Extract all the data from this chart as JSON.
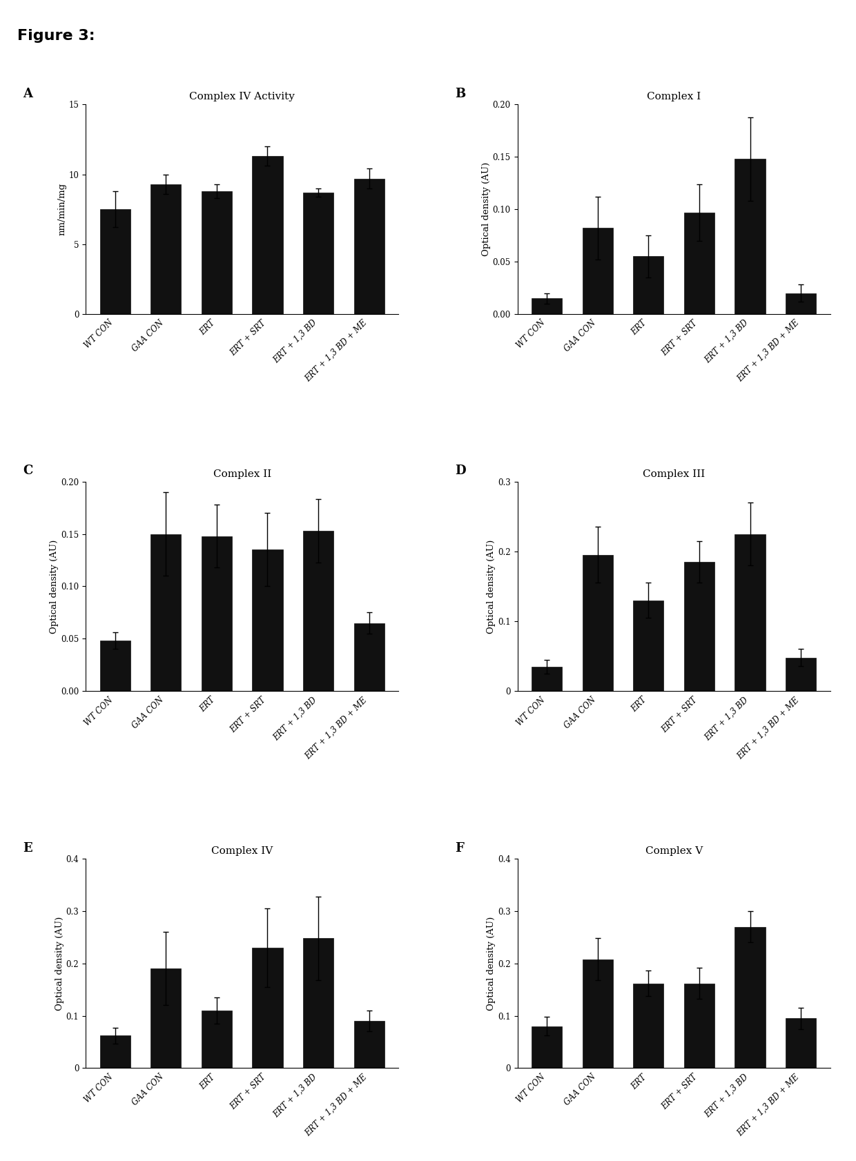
{
  "figure_title": "Figure 3:",
  "categories": [
    "WT CON",
    "GAA CON",
    "ERT",
    "ERT + SRT",
    "ERT + 1,3 BD",
    "ERT + 1,3 BD + ME"
  ],
  "panels": [
    {
      "label": "A",
      "title": "Complex IV Activity",
      "ylabel": "nm/min/mg",
      "ylim": [
        0,
        15
      ],
      "yticks": [
        0,
        5,
        10,
        15
      ],
      "yticklabels": [
        "0",
        "5",
        "10",
        "15"
      ],
      "values": [
        7.5,
        9.3,
        8.8,
        11.3,
        8.7,
        9.7
      ],
      "errors": [
        1.3,
        0.7,
        0.5,
        0.7,
        0.3,
        0.7
      ]
    },
    {
      "label": "B",
      "title": "Complex I",
      "ylabel": "Optical density (AU)",
      "ylim": [
        0,
        0.2
      ],
      "yticks": [
        0.0,
        0.05,
        0.1,
        0.15,
        0.2
      ],
      "yticklabels": [
        "0.00",
        "0.05",
        "0.10",
        "0.15",
        "0.20"
      ],
      "values": [
        0.015,
        0.082,
        0.055,
        0.097,
        0.148,
        0.02
      ],
      "errors": [
        0.005,
        0.03,
        0.02,
        0.027,
        0.04,
        0.008
      ]
    },
    {
      "label": "C",
      "title": "Complex II",
      "ylabel": "Optical density (AU)",
      "ylim": [
        0,
        0.2
      ],
      "yticks": [
        0.0,
        0.05,
        0.1,
        0.15,
        0.2
      ],
      "yticklabels": [
        "0.00",
        "0.05",
        "0.10",
        "0.15",
        "0.20"
      ],
      "values": [
        0.048,
        0.15,
        0.148,
        0.135,
        0.153,
        0.065
      ],
      "errors": [
        0.008,
        0.04,
        0.03,
        0.035,
        0.03,
        0.01
      ]
    },
    {
      "label": "D",
      "title": "Complex III",
      "ylabel": "Optical density (AU)",
      "ylim": [
        0,
        0.3
      ],
      "yticks": [
        0.0,
        0.1,
        0.2,
        0.3
      ],
      "yticklabels": [
        "0",
        "0.1",
        "0.2",
        "0.3"
      ],
      "values": [
        0.035,
        0.195,
        0.13,
        0.185,
        0.225,
        0.048
      ],
      "errors": [
        0.01,
        0.04,
        0.025,
        0.03,
        0.045,
        0.012
      ]
    },
    {
      "label": "E",
      "title": "Complex IV",
      "ylabel": "Optical density (AU)",
      "ylim": [
        0,
        0.4
      ],
      "yticks": [
        0.0,
        0.1,
        0.2,
        0.3,
        0.4
      ],
      "yticklabels": [
        "0",
        "0.1",
        "0.2",
        "0.3",
        "0.4"
      ],
      "values": [
        0.062,
        0.19,
        0.11,
        0.23,
        0.248,
        0.09
      ],
      "errors": [
        0.015,
        0.07,
        0.025,
        0.075,
        0.08,
        0.02
      ]
    },
    {
      "label": "F",
      "title": "Complex V",
      "ylabel": "Optical density (AU)",
      "ylim": [
        0,
        0.4
      ],
      "yticks": [
        0.0,
        0.1,
        0.2,
        0.3,
        0.4
      ],
      "yticklabels": [
        "0",
        "0.1",
        "0.2",
        "0.3",
        "0.4"
      ],
      "values": [
        0.08,
        0.208,
        0.162,
        0.162,
        0.27,
        0.095
      ],
      "errors": [
        0.018,
        0.04,
        0.025,
        0.03,
        0.03,
        0.02
      ]
    }
  ],
  "bar_color": "#111111",
  "bar_width": 0.6,
  "bar_edge_color": "#111111",
  "error_color": "black",
  "figure_title_fontsize": 16,
  "panel_label_fontsize": 13,
  "title_fontsize": 11,
  "tick_fontsize": 8.5,
  "ylabel_fontsize": 9.5,
  "xlabel_rotation": 45,
  "figure_facecolor": "#ffffff"
}
